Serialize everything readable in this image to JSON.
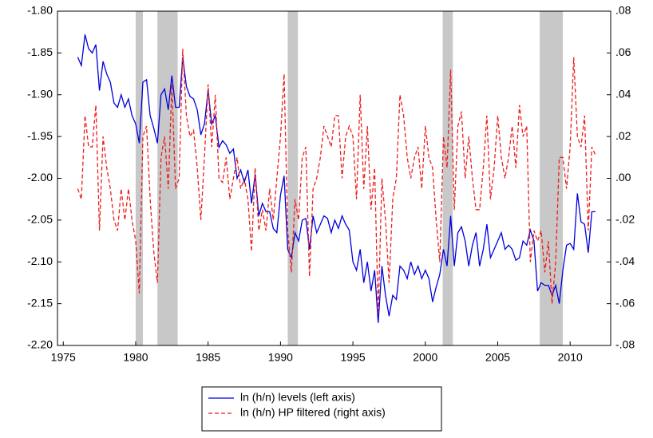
{
  "chart_data": {
    "type": "line",
    "x": [
      1976,
      1976.25,
      1976.5,
      1976.75,
      1977,
      1977.25,
      1977.5,
      1977.75,
      1978,
      1978.25,
      1978.5,
      1978.75,
      1979,
      1979.25,
      1979.5,
      1979.75,
      1980,
      1980.25,
      1980.5,
      1980.75,
      1981,
      1981.25,
      1981.5,
      1981.75,
      1982,
      1982.25,
      1982.5,
      1982.75,
      1983,
      1983.25,
      1983.5,
      1983.75,
      1984,
      1984.25,
      1984.5,
      1984.75,
      1985,
      1985.25,
      1985.5,
      1985.75,
      1986,
      1986.25,
      1986.5,
      1986.75,
      1987,
      1987.25,
      1987.5,
      1987.75,
      1988,
      1988.25,
      1988.5,
      1988.75,
      1989,
      1989.25,
      1989.5,
      1989.75,
      1990,
      1990.25,
      1990.5,
      1990.75,
      1991,
      1991.25,
      1991.5,
      1991.75,
      1992,
      1992.25,
      1992.5,
      1992.75,
      1993,
      1993.25,
      1993.5,
      1993.75,
      1994,
      1994.25,
      1994.5,
      1994.75,
      1995,
      1995.25,
      1995.5,
      1995.75,
      1996,
      1996.25,
      1996.5,
      1996.75,
      1997,
      1997.25,
      1997.5,
      1997.75,
      1998,
      1998.25,
      1998.5,
      1998.75,
      1999,
      1999.25,
      1999.5,
      1999.75,
      2000,
      2000.25,
      2000.5,
      2000.75,
      2001,
      2001.25,
      2001.5,
      2001.75,
      2002,
      2002.25,
      2002.5,
      2002.75,
      2003,
      2003.25,
      2003.5,
      2003.75,
      2004,
      2004.25,
      2004.5,
      2004.75,
      2005,
      2005.25,
      2005.5,
      2005.75,
      2006,
      2006.25,
      2006.5,
      2006.75,
      2007,
      2007.25,
      2007.5,
      2007.75,
      2008,
      2008.25,
      2008.5,
      2008.75,
      2009,
      2009.25,
      2009.5,
      2009.75,
      2010,
      2010.25,
      2010.5,
      2010.75,
      2011,
      2011.25,
      2011.5,
      2011.75
    ],
    "series": [
      {
        "name": "ln (h/n) levels (left axis)",
        "color": "#0000dd",
        "dash": "solid",
        "values": [
          -1.855,
          -1.865,
          -1.828,
          -1.845,
          -1.85,
          -1.84,
          -1.895,
          -1.86,
          -1.875,
          -1.885,
          -1.91,
          -1.915,
          -1.9,
          -1.915,
          -1.905,
          -1.925,
          -1.935,
          -1.958,
          -1.885,
          -1.882,
          -1.925,
          -1.94,
          -1.958,
          -1.9,
          -1.893,
          -1.918,
          -1.877,
          -1.915,
          -1.915,
          -1.855,
          -1.89,
          -1.902,
          -1.905,
          -1.918,
          -1.948,
          -1.935,
          -1.895,
          -1.935,
          -1.925,
          -1.963,
          -1.955,
          -1.96,
          -1.97,
          -1.965,
          -2.0,
          -1.99,
          -2.005,
          -1.99,
          -2.03,
          -1.995,
          -2.045,
          -2.03,
          -2.04,
          -2.04,
          -2.06,
          -2.065,
          -2.02,
          -1.997,
          -2.085,
          -2.095,
          -2.065,
          -2.075,
          -2.05,
          -2.048,
          -2.085,
          -2.045,
          -2.065,
          -2.055,
          -2.045,
          -2.048,
          -2.065,
          -2.05,
          -2.06,
          -2.045,
          -2.055,
          -2.062,
          -2.1,
          -2.11,
          -2.085,
          -2.125,
          -2.1,
          -2.135,
          -2.11,
          -2.173,
          -2.105,
          -2.14,
          -2.165,
          -2.14,
          -2.145,
          -2.105,
          -2.11,
          -2.12,
          -2.1,
          -2.115,
          -2.105,
          -2.12,
          -2.11,
          -2.12,
          -2.148,
          -2.13,
          -2.115,
          -2.085,
          -2.105,
          -2.045,
          -2.105,
          -2.065,
          -2.058,
          -2.075,
          -2.105,
          -2.08,
          -2.065,
          -2.105,
          -2.085,
          -2.055,
          -2.095,
          -2.085,
          -2.075,
          -2.065,
          -2.085,
          -2.08,
          -2.085,
          -2.098,
          -2.095,
          -2.075,
          -2.08,
          -2.062,
          -2.075,
          -2.135,
          -2.125,
          -2.128,
          -2.128,
          -2.14,
          -2.128,
          -2.15,
          -2.11,
          -2.08,
          -2.078,
          -2.085,
          -2.018,
          -2.052,
          -2.055,
          -2.089,
          -2.04,
          -2.04
        ]
      },
      {
        "name": "ln (h/n) HP filtered (right axis)",
        "color": "#ee1c1c",
        "dash": "dashed",
        "axis": "y2",
        "values": [
          -0.005,
          -0.01,
          0.03,
          0.015,
          0.015,
          0.035,
          -0.025,
          0.02,
          0.005,
          -0.005,
          -0.02,
          -0.025,
          -0.005,
          -0.02,
          -0.005,
          -0.02,
          -0.03,
          -0.055,
          0.02,
          0.025,
          -0.01,
          -0.035,
          -0.05,
          0.01,
          0.02,
          -0.005,
          0.045,
          -0.005,
          0.0,
          0.062,
          0.03,
          0.02,
          0.023,
          0.005,
          -0.02,
          0.01,
          0.045,
          0.015,
          0.04,
          0.0,
          -0.002,
          0.01,
          -0.01,
          0.0,
          0.01,
          -0.005,
          0.0,
          -0.01,
          -0.035,
          0.005,
          -0.025,
          -0.015,
          -0.025,
          -0.005,
          -0.02,
          0.0,
          0.02,
          0.05,
          -0.025,
          -0.045,
          -0.01,
          -0.02,
          0.01,
          0.015,
          -0.047,
          -0.005,
          0.0,
          0.01,
          0.025,
          0.02,
          0.015,
          0.03,
          0.03,
          0.0,
          0.02,
          0.025,
          0.02,
          -0.01,
          0.04,
          -0.005,
          0.025,
          -0.015,
          0.005,
          -0.065,
          0.0,
          -0.02,
          -0.05,
          -0.01,
          0.0,
          0.04,
          0.03,
          0.01,
          0.0,
          0.01,
          0.015,
          -0.005,
          0.025,
          0.01,
          0.005,
          -0.02,
          -0.04,
          0.02,
          0.005,
          0.052,
          -0.015,
          0.025,
          0.032,
          0.0,
          0.02,
          0.0,
          -0.015,
          -0.015,
          0.005,
          0.03,
          -0.01,
          0.005,
          0.03,
          0.01,
          0.0,
          0.01,
          0.025,
          0.005,
          0.035,
          0.02,
          0.025,
          -0.04,
          -0.025,
          -0.03,
          -0.025,
          -0.045,
          -0.03,
          -0.06,
          -0.04,
          0.01,
          0.01,
          -0.005,
          0.015,
          0.058,
          0.02,
          0.015,
          0.03,
          -0.025,
          0.015,
          0.011
        ]
      }
    ],
    "shaded_periods": [
      [
        1980.0,
        1980.5
      ],
      [
        1981.5,
        1982.9
      ],
      [
        1990.5,
        1991.2
      ],
      [
        2001.2,
        2001.9
      ],
      [
        2007.9,
        2009.5
      ]
    ],
    "shade_color": "#c8c8c8",
    "xlim": [
      1974.6,
      2012.8
    ],
    "xticks": [
      1975,
      1980,
      1985,
      1990,
      1995,
      2000,
      2005,
      2010
    ],
    "ylim": [
      -2.2,
      -1.8
    ],
    "yticks": [
      {
        "value": -2.2,
        "label": "-2.20"
      },
      {
        "value": -2.15,
        "label": "-2.15"
      },
      {
        "value": -2.1,
        "label": "-2.10"
      },
      {
        "value": -2.05,
        "label": "-2.05"
      },
      {
        "value": -2.0,
        "label": "-2.00"
      },
      {
        "value": -1.95,
        "label": "-1.95"
      },
      {
        "value": -1.9,
        "label": "-1.90"
      },
      {
        "value": -1.85,
        "label": "-1.85"
      },
      {
        "value": -1.8,
        "label": "-1.80"
      }
    ],
    "y2lim": [
      -0.08,
      0.08
    ],
    "y2ticks": [
      {
        "value": -0.08,
        "label": "-.08"
      },
      {
        "value": -0.06,
        "label": "-.06"
      },
      {
        "value": -0.04,
        "label": "-.04"
      },
      {
        "value": -0.02,
        "label": "-.02"
      },
      {
        "value": 0.0,
        "label": ".00"
      },
      {
        "value": 0.02,
        "label": ".02"
      },
      {
        "value": 0.04,
        "label": ".04"
      },
      {
        "value": 0.06,
        "label": ".06"
      },
      {
        "value": 0.08,
        "label": ".08"
      }
    ],
    "legend": "bottom"
  }
}
